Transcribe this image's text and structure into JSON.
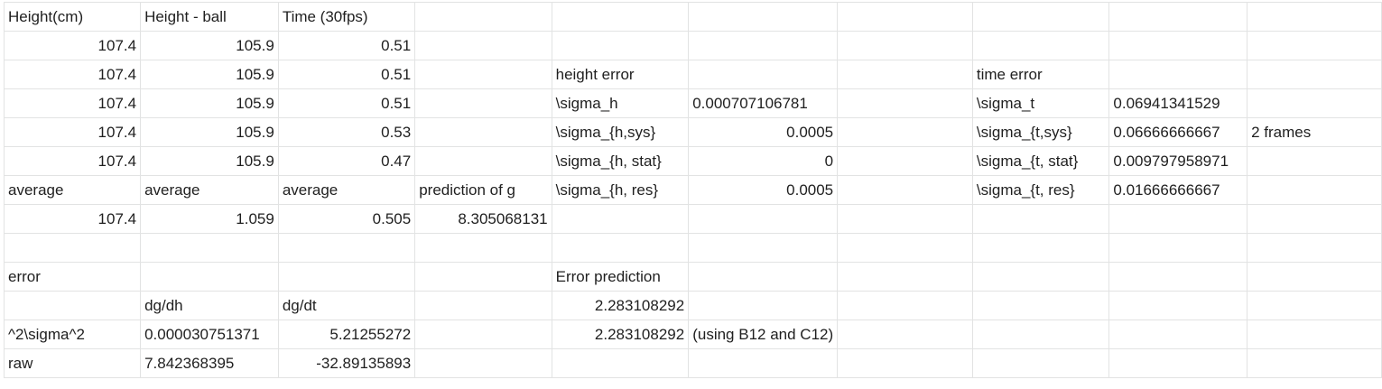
{
  "sheet": {
    "rows": [
      [
        "Height(cm)",
        "Height - ball",
        "Time (30fps)",
        "",
        "",
        "",
        "",
        "",
        "",
        "",
        ""
      ],
      [
        "107.4",
        "105.9",
        "0.51",
        "",
        "",
        "",
        "",
        "",
        "",
        "",
        ""
      ],
      [
        "107.4",
        "105.9",
        "0.51",
        "",
        "height error",
        "",
        "",
        "time error",
        "",
        "",
        ""
      ],
      [
        "107.4",
        "105.9",
        "0.51",
        "",
        "\\sigma_h",
        "0.000707106781",
        "",
        "\\sigma_t",
        "0.06941341529",
        "",
        ""
      ],
      [
        "107.4",
        "105.9",
        "0.53",
        "",
        "\\sigma_{h,sys}",
        "0.0005",
        "",
        "\\sigma_{t,sys}",
        "0.06666666667",
        "2 frames",
        ""
      ],
      [
        "107.4",
        "105.9",
        "0.47",
        "",
        "\\sigma_{h, stat}",
        "0",
        "",
        "\\sigma_{t, stat}",
        "0.009797958971",
        "",
        ""
      ],
      [
        "average",
        "average",
        "average",
        "prediction of g",
        "\\sigma_{h, res}",
        "0.0005",
        "",
        "\\sigma_{t, res}",
        "0.01666666667",
        "",
        ""
      ],
      [
        "107.4",
        "1.059",
        "0.505",
        "8.305068131",
        "",
        "",
        "",
        "",
        "",
        "",
        ""
      ],
      [
        "",
        "",
        "",
        "",
        "",
        "",
        "",
        "",
        "",
        "",
        ""
      ],
      [
        "error",
        "",
        "",
        "",
        "Error prediction",
        "",
        "",
        "",
        "",
        "",
        ""
      ],
      [
        "",
        "dg/dh",
        "dg/dt",
        "",
        "2.283108292",
        "",
        "",
        "",
        "",
        "",
        ""
      ],
      [
        "^2\\sigma^2",
        "0.000030751371",
        "5.21255272",
        "",
        "2.283108292",
        "(using B12 and C12)",
        "",
        "",
        "",
        "",
        ""
      ],
      [
        "raw",
        "7.842368395",
        "-32.89135893",
        "",
        "",
        "",
        "",
        "",
        "",
        "",
        ""
      ]
    ],
    "align": [
      [
        "l",
        "l",
        "l",
        "l",
        "l",
        "l",
        "l",
        "l",
        "l",
        "l",
        "l"
      ],
      [
        "r",
        "r",
        "r",
        "l",
        "l",
        "l",
        "l",
        "l",
        "l",
        "l",
        "l"
      ],
      [
        "r",
        "r",
        "r",
        "l",
        "l",
        "l",
        "l",
        "l",
        "l",
        "l",
        "l"
      ],
      [
        "r",
        "r",
        "r",
        "l",
        "l",
        "l",
        "l",
        "l",
        "l",
        "l",
        "l"
      ],
      [
        "r",
        "r",
        "r",
        "l",
        "l",
        "r",
        "l",
        "l",
        "l",
        "l",
        "l"
      ],
      [
        "r",
        "r",
        "r",
        "l",
        "l",
        "r",
        "l",
        "l",
        "l",
        "l",
        "l"
      ],
      [
        "l",
        "l",
        "l",
        "l",
        "l",
        "r",
        "l",
        "l",
        "l",
        "l",
        "l"
      ],
      [
        "r",
        "r",
        "r",
        "r",
        "l",
        "l",
        "l",
        "l",
        "l",
        "l",
        "l"
      ],
      [
        "l",
        "l",
        "l",
        "l",
        "l",
        "l",
        "l",
        "l",
        "l",
        "l",
        "l"
      ],
      [
        "l",
        "l",
        "l",
        "l",
        "l",
        "l",
        "l",
        "l",
        "l",
        "l",
        "l"
      ],
      [
        "l",
        "l",
        "l",
        "l",
        "r",
        "l",
        "l",
        "l",
        "l",
        "l",
        "l"
      ],
      [
        "l",
        "l",
        "r",
        "l",
        "r",
        "l",
        "l",
        "l",
        "l",
        "l",
        "l"
      ],
      [
        "l",
        "l",
        "r",
        "l",
        "l",
        "l",
        "l",
        "l",
        "l",
        "l",
        "l"
      ]
    ]
  }
}
